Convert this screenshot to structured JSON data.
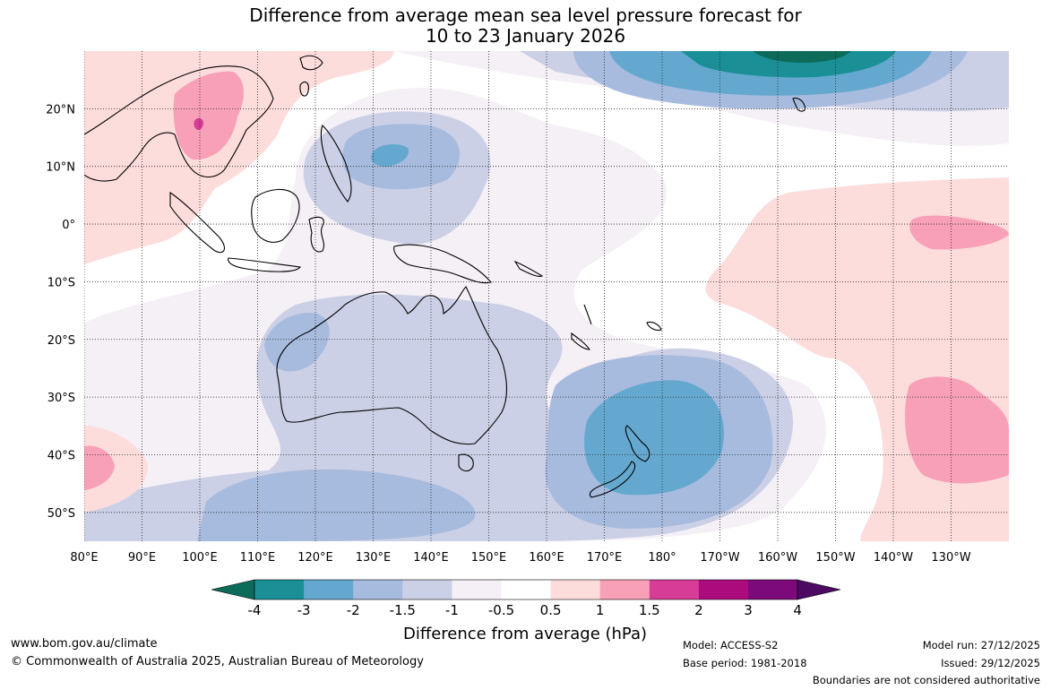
{
  "title": {
    "line1": "Difference from average mean sea level pressure forecast for",
    "line2": "10 to 23 January 2026"
  },
  "map": {
    "lon_ticks": [
      "80°E",
      "90°E",
      "100°E",
      "110°E",
      "120°E",
      "130°E",
      "140°E",
      "150°E",
      "160°E",
      "170°E",
      "180°",
      "170°W",
      "160°W",
      "150°W",
      "140°W",
      "130°W"
    ],
    "lat_ticks": [
      "20°N",
      "10°N",
      "0°",
      "10°S",
      "20°S",
      "30°S",
      "40°S",
      "50°S"
    ],
    "lon_values": [
      80,
      90,
      100,
      110,
      120,
      130,
      140,
      150,
      160,
      170,
      180,
      190,
      200,
      210,
      220,
      230
    ],
    "lat_values": [
      20,
      10,
      0,
      -10,
      -20,
      -30,
      -40,
      -50
    ],
    "extent": {
      "lon_min": 80,
      "lon_max": 240,
      "lat_min": -55,
      "lat_max": 30
    }
  },
  "colorbar": {
    "labels": [
      "-4",
      "-3",
      "-2",
      "-1.5",
      "-1",
      "-0.5",
      "0.5",
      "1",
      "1.5",
      "2",
      "3",
      "4"
    ],
    "colors": [
      "#0d6b5a",
      "#1a8f96",
      "#65a8cf",
      "#a7bbde",
      "#ccd0e6",
      "#f5eff6",
      "#ffffff",
      "#fddcdc",
      "#f7a0b8",
      "#d73c97",
      "#ab0b7d",
      "#7c0a7a",
      "#4c0a63"
    ],
    "label": "Difference from average (hPa)"
  },
  "footer": {
    "website": "www.bom.gov.au/climate",
    "copyright": "© Commonwealth of Australia 2025, Australian Bureau of Meteorology",
    "model": "Model: ACCESS-S2",
    "base_period": "Base period: 1981-2018",
    "model_run": "Model run: 27/12/2025",
    "issued": "Issued: 29/12/2025",
    "disclaimer": "Boundaries are not considered authoritative"
  }
}
